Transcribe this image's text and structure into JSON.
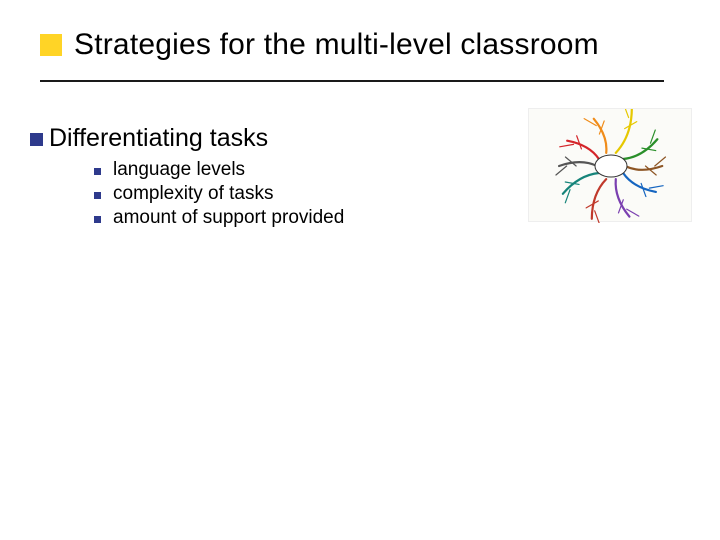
{
  "colors": {
    "accent_square": "#ffcc00",
    "bullet_l1": "#2e3a8c",
    "bullet_l2": "#2e3a8c",
    "text": "#000000",
    "rule": "#1a1a1a",
    "background": "#ffffff"
  },
  "title": "Strategies for the multi-level classroom",
  "main_bullet": "Differentiating tasks",
  "sub_bullets": [
    "language levels",
    "complexity of tasks",
    "amount of support provided"
  ],
  "mindmap": {
    "center_label": "",
    "branches": [
      {
        "color": "#d4252a",
        "angle": -150
      },
      {
        "color": "#f08c1a",
        "angle": -110
      },
      {
        "color": "#e6c800",
        "angle": -70
      },
      {
        "color": "#2a8f2a",
        "angle": -30
      },
      {
        "color": "#1565c0",
        "angle": 30
      },
      {
        "color": "#7a3fb0",
        "angle": 70
      },
      {
        "color": "#c0392b",
        "angle": 110
      },
      {
        "color": "#16847a",
        "angle": 150
      },
      {
        "color": "#555555",
        "angle": 180
      },
      {
        "color": "#8d5524",
        "angle": 0
      }
    ]
  }
}
